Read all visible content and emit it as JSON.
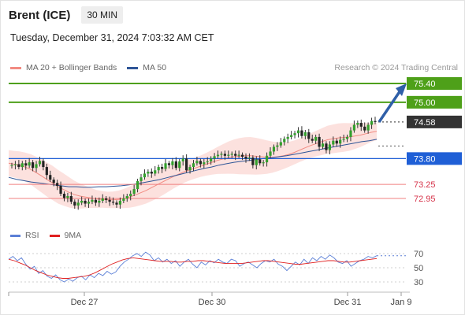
{
  "header": {
    "instrument": "Brent (ICE)",
    "timeframe": "30 MIN",
    "datetime": "Tuesday, December 31, 2024 7:03:32 AM CET"
  },
  "legend": {
    "ma20": {
      "label": "MA 20 + Bollinger Bands",
      "color": "#f28b82"
    },
    "ma50": {
      "label": "MA 50",
      "color": "#2f5597"
    }
  },
  "credit": "Research © 2024 Trading Central",
  "rsi_legend": {
    "rsi": {
      "label": "RSI",
      "color": "#5b7fd6"
    },
    "ma9": {
      "label": "9MA",
      "color": "#e02020"
    }
  },
  "colors": {
    "up": "#33a02c",
    "down": "#222222",
    "resistance": "#4ea019",
    "support": "#1f5fd6",
    "pivot": "#f08080",
    "last": "#333333",
    "arrow": "#2f5fa8",
    "band": "#fbd4d0"
  },
  "chart_data": [
    {
      "type": "candlestick",
      "ylim": [
        72.6,
        75.55
      ],
      "xaxis": {
        "ticks": [
          "Dec 27",
          "Dec 30",
          "Dec 31",
          "Jan 9"
        ]
      },
      "levels": [
        {
          "value": 75.4,
          "label": "75.40",
          "kind": "resistance"
        },
        {
          "value": 75.0,
          "label": "75.00",
          "kind": "resistance"
        },
        {
          "value": 74.58,
          "label": "74.58",
          "kind": "last"
        },
        {
          "value": 73.8,
          "label": "73.80",
          "kind": "support"
        },
        {
          "value": 73.25,
          "label": "73.25",
          "kind": "pivot"
        },
        {
          "value": 72.95,
          "label": "72.95",
          "kind": "pivot"
        }
      ],
      "close": [
        73.66,
        73.68,
        73.62,
        73.7,
        73.65,
        73.72,
        73.6,
        73.68,
        73.75,
        73.62,
        73.45,
        73.35,
        73.28,
        73.22,
        73.05,
        72.96,
        73.0,
        72.88,
        72.8,
        72.86,
        72.9,
        72.84,
        72.88,
        72.92,
        72.86,
        72.9,
        72.95,
        72.92,
        72.88,
        72.86,
        72.82,
        72.9,
        72.95,
        73.0,
        73.05,
        73.15,
        73.32,
        73.4,
        73.48,
        73.52,
        73.48,
        73.55,
        73.62,
        73.58,
        73.7,
        73.66,
        73.74,
        73.6,
        73.74,
        73.8,
        73.55,
        73.62,
        73.7,
        73.75,
        73.68,
        73.72,
        73.74,
        73.8,
        73.85,
        73.88,
        73.9,
        73.86,
        73.88,
        73.9,
        73.86,
        73.88,
        73.84,
        73.8,
        73.82,
        73.66,
        73.78,
        73.7,
        73.72,
        73.86,
        73.95,
        74.05,
        74.08,
        74.15,
        74.22,
        74.26,
        74.3,
        74.34,
        74.4,
        74.28,
        74.36,
        74.22,
        74.18,
        74.26,
        74.05,
        74.12,
        73.98,
        74.1,
        74.18,
        74.12,
        74.2,
        74.22,
        74.26,
        74.4,
        74.52,
        74.56,
        74.48,
        74.4,
        74.52,
        74.6,
        74.58
      ],
      "ma20": [
        73.7,
        73.68,
        73.66,
        73.62,
        73.57,
        73.5,
        73.43,
        73.35,
        73.28,
        73.2,
        73.14,
        73.08,
        73.03,
        73.0,
        72.98,
        72.96,
        72.94,
        72.93,
        72.92,
        72.92,
        72.93,
        72.95,
        72.98,
        73.02,
        73.07,
        73.12,
        73.18,
        73.24,
        73.3,
        73.36,
        73.42,
        73.47,
        73.52,
        73.56,
        73.6,
        73.64,
        73.68,
        73.72,
        73.76,
        73.79,
        73.82,
        73.84,
        73.85,
        73.86,
        73.86,
        73.85,
        73.84,
        73.83,
        73.83,
        73.84,
        73.86,
        73.89,
        73.93,
        73.98,
        74.03,
        74.08,
        74.12,
        74.16,
        74.2,
        74.22,
        74.24,
        74.25,
        74.26,
        74.28,
        74.3,
        74.33,
        74.36,
        74.38
      ],
      "ma50": [
        73.4,
        73.36,
        73.33,
        73.3,
        73.28,
        73.26,
        73.24,
        73.22,
        73.2,
        73.2,
        73.19,
        73.19,
        73.2,
        73.2,
        73.21,
        73.22,
        73.24,
        73.26,
        73.29,
        73.32,
        73.35,
        73.39,
        73.43,
        73.47,
        73.51,
        73.55,
        73.59,
        73.62,
        73.66,
        73.69,
        73.72,
        73.74,
        73.76,
        73.78,
        73.8,
        73.82,
        73.84,
        73.86,
        73.89,
        73.92,
        73.95,
        73.98,
        74.01,
        74.04,
        74.07,
        74.1,
        74.13,
        74.16,
        74.18,
        74.21
      ]
    },
    {
      "type": "line",
      "title": "RSI",
      "yticks": [
        70,
        50,
        30
      ],
      "ylim": [
        20,
        80
      ],
      "series": [
        {
          "name": "RSI",
          "values": [
            62,
            66,
            60,
            64,
            55,
            48,
            52,
            42,
            46,
            38,
            35,
            40,
            33,
            30,
            34,
            31,
            36,
            38,
            33,
            40,
            36,
            42,
            39,
            45,
            41,
            44,
            52,
            58,
            62,
            67,
            70,
            66,
            72,
            68,
            60,
            64,
            58,
            62,
            56,
            60,
            52,
            58,
            62,
            55,
            50,
            58,
            54,
            60,
            57,
            62,
            58,
            56,
            62,
            60,
            52,
            56,
            58,
            54,
            50,
            56,
            60,
            58,
            62,
            55,
            52,
            46,
            52,
            58,
            54,
            62,
            56,
            64,
            60,
            66,
            62,
            68,
            64,
            58,
            56,
            60,
            52,
            56,
            60,
            62,
            66,
            64,
            67
          ]
        },
        {
          "name": "9MA",
          "values": [
            62,
            60,
            57,
            54,
            50,
            46,
            43,
            40,
            38,
            36,
            35,
            35,
            36,
            37,
            38,
            40,
            43,
            47,
            51,
            55,
            58,
            61,
            63,
            64,
            63,
            62,
            61,
            60,
            59,
            59,
            59,
            58,
            58,
            59,
            59,
            60,
            60,
            59,
            58,
            57,
            56,
            56,
            56,
            56,
            57,
            58,
            59,
            60,
            60,
            59,
            58,
            57,
            56,
            55,
            55,
            56,
            57,
            58,
            59,
            60,
            60,
            59,
            58,
            58,
            59,
            60,
            61,
            62,
            63
          ]
        }
      ]
    }
  ]
}
